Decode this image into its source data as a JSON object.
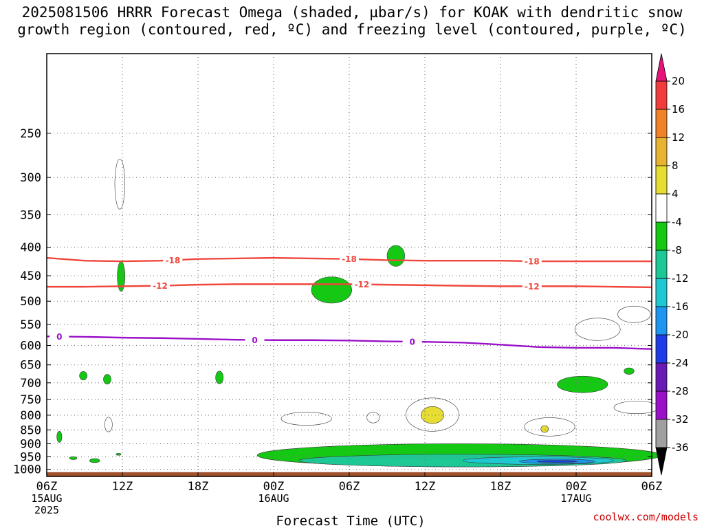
{
  "title_line1": "2025081506 HRRR Forecast Omega (shaded, µbar/s) for KOAK with dendritic snow",
  "title_line2": "growth region (contoured, red, ºC) and freezing level (contoured, purple, ºC)",
  "xlabel": "Forecast Time (UTC)",
  "credit": "coolwx.com/models",
  "chart_data": {
    "type": "heatmap",
    "title": "2025081506 HRRR Forecast Omega (shaded, µbar/s) for KOAK with dendritic snow growth region (contoured, red, ºC) and freezing level (contoured, purple, ºC)",
    "xlabel": "Forecast Time (UTC)",
    "ylabel": "",
    "x_ticks": [
      {
        "hours": 0,
        "label": "06Z",
        "date": "15AUG",
        "year": "2025"
      },
      {
        "hours": 6,
        "label": "12Z"
      },
      {
        "hours": 12,
        "label": "18Z"
      },
      {
        "hours": 18,
        "label": "00Z",
        "date": "16AUG"
      },
      {
        "hours": 24,
        "label": "06Z"
      },
      {
        "hours": 30,
        "label": "12Z"
      },
      {
        "hours": 36,
        "label": "18Z"
      },
      {
        "hours": 42,
        "label": "00Z",
        "date": "17AUG"
      },
      {
        "hours": 48,
        "label": "06Z"
      }
    ],
    "y_axis": {
      "scale": "log",
      "inverted": true,
      "range_hpa": [
        1030,
        180
      ],
      "ticks": [
        250,
        300,
        350,
        400,
        450,
        500,
        550,
        600,
        650,
        700,
        750,
        800,
        850,
        900,
        950,
        1000
      ]
    },
    "grid": true,
    "colorbar": {
      "levels": [
        -36,
        -32,
        -28,
        -24,
        -20,
        -16,
        -12,
        -8,
        -4,
        4,
        8,
        12,
        16,
        20
      ],
      "colors": [
        "#000000",
        "#a0a0a0",
        "#9a10c8",
        "#6a1ab4",
        "#1e3ce6",
        "#1e96f0",
        "#1ec8d2",
        "#1ec896",
        "#14c814",
        "#ffffff",
        "#e6dc32",
        "#e6b432",
        "#f08228",
        "#f03c3c",
        "#e6147a"
      ]
    },
    "contours": [
      {
        "name": "dendritic snow growth region",
        "color": "#f0463c",
        "level": -18,
        "label": "-18",
        "points": [
          [
            0,
            418
          ],
          [
            3,
            423
          ],
          [
            6,
            424
          ],
          [
            9,
            423
          ],
          [
            12,
            420
          ],
          [
            15,
            419
          ],
          [
            18,
            418
          ],
          [
            21,
            419
          ],
          [
            24,
            420
          ],
          [
            27,
            422
          ],
          [
            30,
            423
          ],
          [
            33,
            423
          ],
          [
            36,
            423
          ],
          [
            39,
            424
          ],
          [
            42,
            424
          ],
          [
            45,
            424
          ],
          [
            48,
            424
          ]
        ],
        "label_hours": [
          10,
          24,
          38.5
        ]
      },
      {
        "name": "dendritic snow growth region",
        "color": "#f0463c",
        "level": -12,
        "label": "-12",
        "points": [
          [
            0,
            471
          ],
          [
            3,
            471
          ],
          [
            6,
            470
          ],
          [
            9,
            469
          ],
          [
            12,
            467
          ],
          [
            15,
            466
          ],
          [
            18,
            466
          ],
          [
            21,
            466
          ],
          [
            24,
            466
          ],
          [
            27,
            467
          ],
          [
            30,
            468
          ],
          [
            33,
            469
          ],
          [
            36,
            470
          ],
          [
            39,
            470
          ],
          [
            42,
            470
          ],
          [
            45,
            471
          ],
          [
            48,
            472
          ]
        ],
        "label_hours": [
          9,
          25,
          38.5
        ]
      },
      {
        "name": "freezing level",
        "color": "#9a10c8",
        "level": 0,
        "label": "0",
        "points": [
          [
            0,
            578
          ],
          [
            3,
            579
          ],
          [
            6,
            581
          ],
          [
            9,
            582
          ],
          [
            12,
            584
          ],
          [
            15,
            586
          ],
          [
            18,
            587
          ],
          [
            21,
            587
          ],
          [
            24,
            588
          ],
          [
            27,
            590
          ],
          [
            30,
            591
          ],
          [
            33,
            593
          ],
          [
            36,
            598
          ],
          [
            39,
            604
          ],
          [
            42,
            606
          ],
          [
            45,
            606
          ],
          [
            48,
            609
          ]
        ],
        "label_hours": [
          1,
          16.5,
          29
        ]
      }
    ],
    "omega_regions": [
      {
        "value": 4,
        "cx": 5.8,
        "cy": 310,
        "rx": 0.4,
        "ry": 32
      },
      {
        "value": -4,
        "cx": 5.9,
        "cy": 452,
        "rx": 0.3,
        "ry": 28
      },
      {
        "value": -4,
        "cx": 22.6,
        "cy": 478,
        "rx": 1.6,
        "ry": 26
      },
      {
        "value": -4,
        "cx": 27.7,
        "cy": 415,
        "rx": 0.7,
        "ry": 18
      },
      {
        "value": 4,
        "cx": 43.7,
        "cy": 562,
        "rx": 1.8,
        "ry": 26
      },
      {
        "value": 4,
        "cx": 46.6,
        "cy": 528,
        "rx": 1.3,
        "ry": 18
      },
      {
        "value": -4,
        "cx": 2.9,
        "cy": 680,
        "rx": 0.3,
        "ry": 12
      },
      {
        "value": -4,
        "cx": 4.8,
        "cy": 690,
        "rx": 0.3,
        "ry": 14
      },
      {
        "value": -4,
        "cx": 13.7,
        "cy": 685,
        "rx": 0.3,
        "ry": 18
      },
      {
        "value": -4,
        "cx": 42.5,
        "cy": 705,
        "rx": 2.0,
        "ry": 24
      },
      {
        "value": -4,
        "cx": 46.2,
        "cy": 667,
        "rx": 0.4,
        "ry": 9
      },
      {
        "value": 4,
        "cx": 20.6,
        "cy": 812,
        "rx": 2.0,
        "ry": 22
      },
      {
        "value": 4,
        "cx": 25.9,
        "cy": 808,
        "rx": 0.5,
        "ry": 18
      },
      {
        "value": 4,
        "cx": 30.6,
        "cy": 800,
        "rx": 2.1,
        "ry": 55
      },
      {
        "value": 8,
        "cx": 30.6,
        "cy": 800,
        "rx": 0.9,
        "ry": 28
      },
      {
        "value": 4,
        "cx": 39.9,
        "cy": 840,
        "rx": 2.0,
        "ry": 32
      },
      {
        "value": 8,
        "cx": 39.5,
        "cy": 847,
        "rx": 0.3,
        "ry": 12
      },
      {
        "value": 4,
        "cx": 46.8,
        "cy": 775,
        "rx": 1.8,
        "ry": 20
      },
      {
        "value": 4,
        "cx": 4.9,
        "cy": 832,
        "rx": 0.3,
        "ry": 25
      },
      {
        "value": -4,
        "cx": 1.0,
        "cy": 875,
        "rx": 0.2,
        "ry": 20
      },
      {
        "value": -4,
        "cx": 2.1,
        "cy": 955,
        "rx": 0.3,
        "ry": 6
      },
      {
        "value": -4,
        "cx": 3.8,
        "cy": 965,
        "rx": 0.4,
        "ry": 8
      },
      {
        "value": -4,
        "cx": 5.7,
        "cy": 940,
        "rx": 0.2,
        "ry": 4
      },
      {
        "value": -4,
        "cx": 32.7,
        "cy": 945,
        "rx": 16,
        "ry": 45
      },
      {
        "value": -8,
        "cx": 33.0,
        "cy": 965,
        "rx": 13,
        "ry": 25
      },
      {
        "value": -12,
        "cx": 39.0,
        "cy": 965,
        "rx": 6,
        "ry": 15
      },
      {
        "value": -16,
        "cx": 40.5,
        "cy": 968,
        "rx": 3,
        "ry": 9
      },
      {
        "value": -20,
        "cx": 40.5,
        "cy": 968,
        "rx": 1.6,
        "ry": 4
      }
    ]
  }
}
